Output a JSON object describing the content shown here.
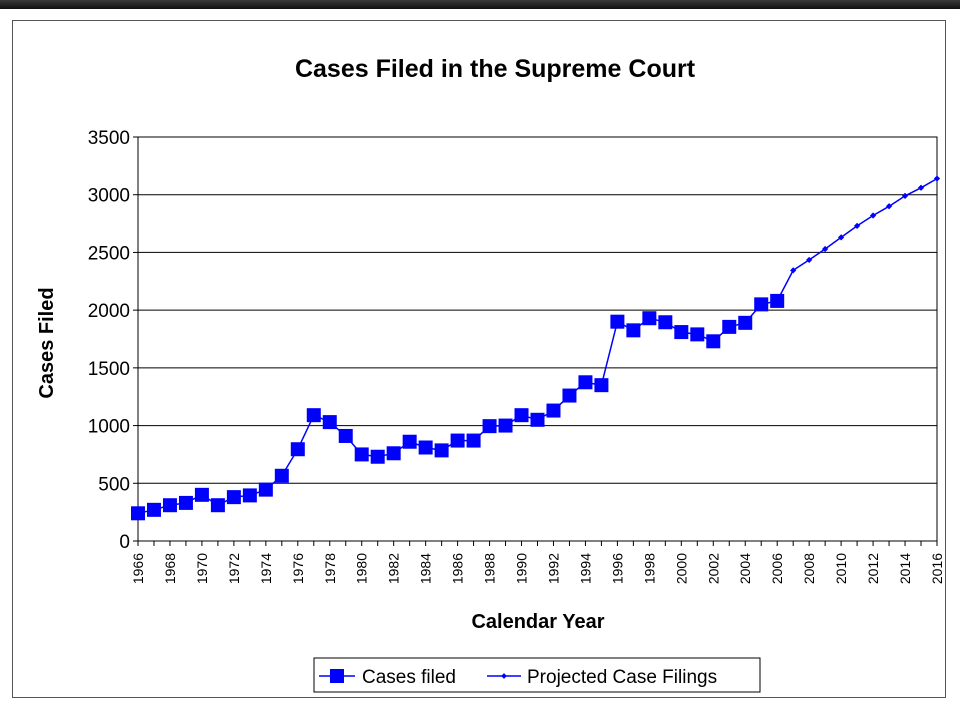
{
  "chart_data": {
    "type": "line",
    "title": "Cases Filed in the Supreme Court",
    "xlabel": "Calendar Year",
    "ylabel": "Cases Filed",
    "ylim": [
      0,
      3500
    ],
    "yticks": [
      0,
      500,
      1000,
      1500,
      2000,
      2500,
      3000,
      3500
    ],
    "xticks": [
      "1966",
      "1968",
      "1970",
      "1972",
      "1974",
      "1976",
      "1978",
      "1980",
      "1982",
      "1984",
      "1986",
      "1988",
      "1990",
      "1992",
      "1994",
      "1996",
      "1998",
      "2000",
      "2002",
      "2004",
      "2006",
      "2008",
      "2010",
      "2012",
      "2014",
      "2016"
    ],
    "grid": true,
    "legend_position": "bottom",
    "series": [
      {
        "name": "Cases filed",
        "color": "#0000ff",
        "marker": "square",
        "points": [
          [
            1966,
            240
          ],
          [
            1967,
            270
          ],
          [
            1968,
            310
          ],
          [
            1969,
            330
          ],
          [
            1970,
            400
          ],
          [
            1971,
            310
          ],
          [
            1972,
            380
          ],
          [
            1973,
            395
          ],
          [
            1974,
            445
          ],
          [
            1975,
            565
          ],
          [
            1976,
            795
          ],
          [
            1977,
            1090
          ],
          [
            1978,
            1030
          ],
          [
            1979,
            910
          ],
          [
            1980,
            750
          ],
          [
            1981,
            730
          ],
          [
            1982,
            760
          ],
          [
            1983,
            860
          ],
          [
            1984,
            810
          ],
          [
            1985,
            785
          ],
          [
            1986,
            870
          ],
          [
            1987,
            870
          ],
          [
            1988,
            995
          ],
          [
            1989,
            1000
          ],
          [
            1990,
            1090
          ],
          [
            1991,
            1050
          ],
          [
            1992,
            1130
          ],
          [
            1993,
            1260
          ],
          [
            1994,
            1375
          ],
          [
            1995,
            1350
          ],
          [
            1996,
            1900
          ],
          [
            1997,
            1825
          ],
          [
            1998,
            1930
          ],
          [
            1999,
            1895
          ],
          [
            2000,
            1810
          ],
          [
            2001,
            1790
          ],
          [
            2002,
            1730
          ],
          [
            2003,
            1855
          ],
          [
            2004,
            1890
          ],
          [
            2005,
            2050
          ],
          [
            2006,
            2080
          ]
        ]
      },
      {
        "name": "Projected Case Filings",
        "color": "#0000ff",
        "marker": "diamond",
        "points": [
          [
            2006,
            2080
          ],
          [
            2007,
            2345
          ],
          [
            2008,
            2435
          ],
          [
            2009,
            2530
          ],
          [
            2010,
            2630
          ],
          [
            2011,
            2730
          ],
          [
            2012,
            2820
          ],
          [
            2013,
            2900
          ],
          [
            2014,
            2990
          ],
          [
            2015,
            3060
          ],
          [
            2016,
            3140
          ]
        ]
      }
    ]
  }
}
